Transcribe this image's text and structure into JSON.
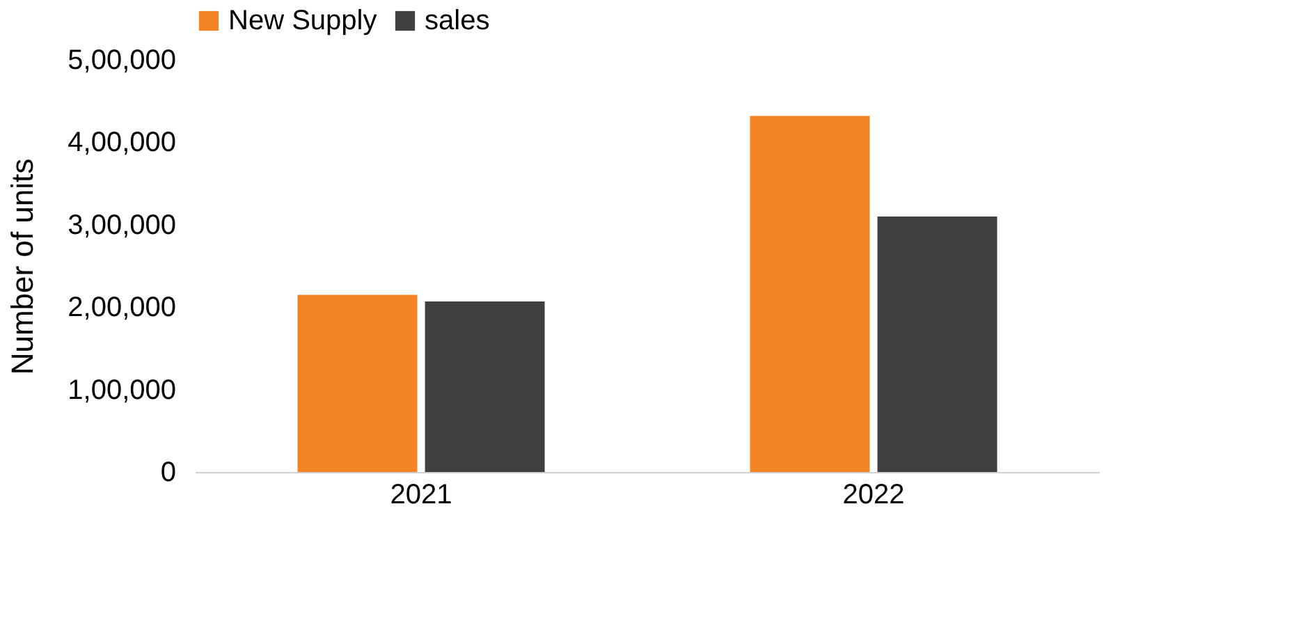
{
  "chart_data": {
    "type": "bar",
    "ylabel": "Number of units",
    "categories": [
      "2021",
      "2022"
    ],
    "series": [
      {
        "name": "New Supply",
        "color": "#f58426",
        "values": [
          215000,
          432000
        ]
      },
      {
        "name": "sales",
        "color": "#404040",
        "values": [
          207000,
          310000
        ]
      }
    ],
    "ylim": [
      0,
      500000
    ],
    "yticks": [
      0,
      {
        "value": 100000,
        "label": "1,00,000"
      },
      {
        "value": 200000,
        "label": "2,00,000"
      },
      {
        "value": 300000,
        "label": "3,00,000"
      },
      {
        "value": 400000,
        "label": "4,00,000"
      },
      {
        "value": 500000,
        "label": "5,00,000"
      }
    ],
    "legend": "top",
    "grid": false
  }
}
